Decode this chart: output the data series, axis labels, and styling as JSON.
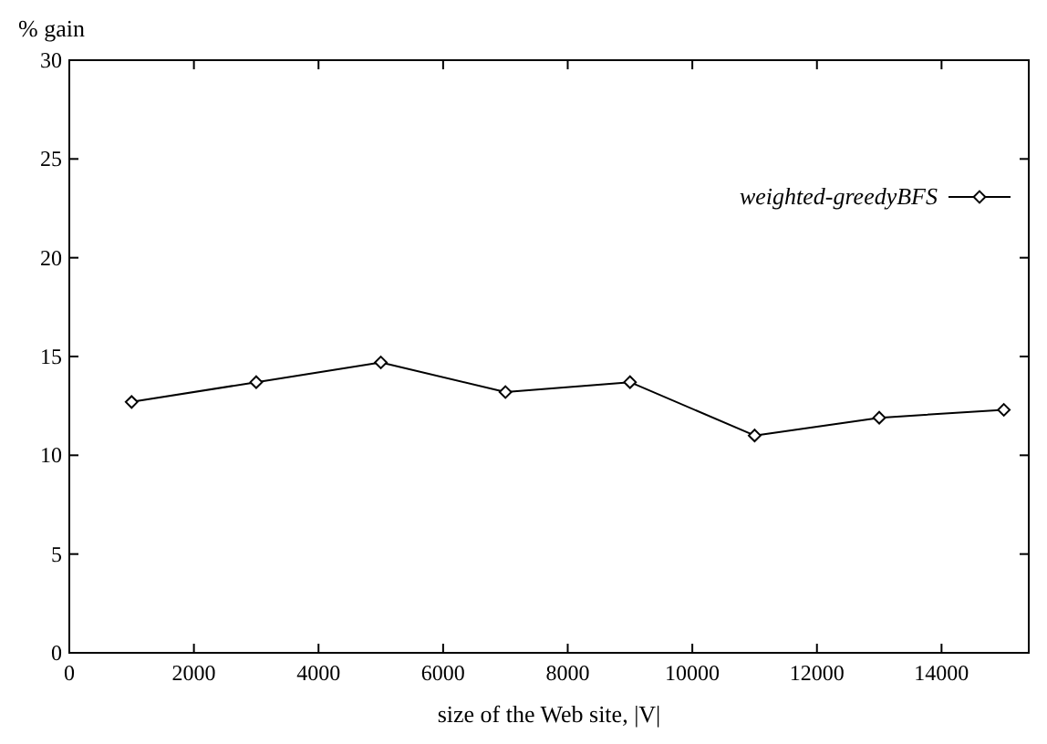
{
  "chart_data": {
    "type": "line",
    "xlabel": "size of the Web site, |V|",
    "ylabel": "% gain",
    "x": [
      1000,
      3000,
      5000,
      7000,
      9000,
      11000,
      13000,
      15000
    ],
    "series": [
      {
        "name": "weighted-greedyBFS",
        "color": "#000000",
        "values": [
          12.7,
          13.7,
          14.7,
          13.2,
          13.7,
          11.0,
          11.9,
          12.3
        ]
      }
    ],
    "xlim": [
      0,
      15400
    ],
    "xticks": [
      0,
      2000,
      4000,
      6000,
      8000,
      10000,
      12000,
      14000
    ],
    "ylim": [
      0,
      30
    ],
    "yticks": [
      0,
      5,
      10,
      15,
      20,
      25,
      30
    ],
    "legend": "top right",
    "marker": "diamond",
    "line_style": "solid",
    "grid": false
  }
}
